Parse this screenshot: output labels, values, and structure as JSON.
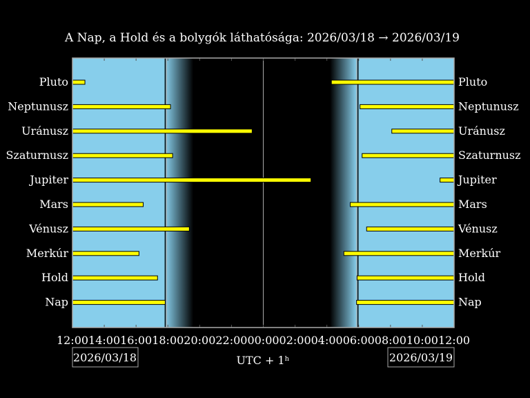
{
  "chart_data": {
    "type": "bar",
    "subtype": "horizontal time ranges (visibility)",
    "title": "A Nap, a Hold és a bolygók láthatósága: 2026/03/18 → 2026/03/19",
    "xlabel": "UTC + 1ʰ",
    "x_tick_labels": [
      "12:00",
      "14:00",
      "16:00",
      "18:00",
      "20:00",
      "22:00",
      "00:00",
      "02:00",
      "04:00",
      "06:00",
      "08:00",
      "10:00",
      "12:00"
    ],
    "date_left": "2026/03/18",
    "date_right": "2026/03/19",
    "xlim": [
      "12:00",
      "12:00 (+1 day)"
    ],
    "sunset": "17:50",
    "twilight_end": "19:36",
    "twilight_start": "04:12",
    "sunrise": "05:52",
    "categories": [
      "Pluto",
      "Neptunusz",
      "Uránusz",
      "Szaturnusz",
      "Jupiter",
      "Mars",
      "Vénusz",
      "Merkúr",
      "Hold",
      "Nap"
    ],
    "series": [
      {
        "body": "Pluto",
        "visible_until": "12:47",
        "visible_from": "04:17"
      },
      {
        "body": "Neptunusz",
        "visible_until": "18:10",
        "visible_from": "06:05"
      },
      {
        "body": "Uránusz",
        "visible_until": "23:18",
        "visible_from": "08:05"
      },
      {
        "body": "Szaturnusz",
        "visible_until": "18:18",
        "visible_from": "06:13"
      },
      {
        "body": "Jupiter",
        "visible_until": "03:00",
        "visible_from": "11:07"
      },
      {
        "body": "Mars",
        "visible_until": "16:27",
        "visible_from": "05:28"
      },
      {
        "body": "Vénusz",
        "visible_until": "19:21",
        "visible_from": "06:30"
      },
      {
        "body": "Merkúr",
        "visible_until": "16:11",
        "visible_from": "05:04"
      },
      {
        "body": "Hold",
        "visible_until": "17:21",
        "visible_from": "05:54"
      },
      {
        "body": "Nap",
        "visible_until": "17:50",
        "visible_from": "05:52"
      }
    ],
    "grid": false,
    "colors": {
      "day": "#87CEEB",
      "night": "#000000",
      "bar": "#FFFF00",
      "bar_edge": "#000000",
      "frame": "#AAAAAA"
    }
  }
}
